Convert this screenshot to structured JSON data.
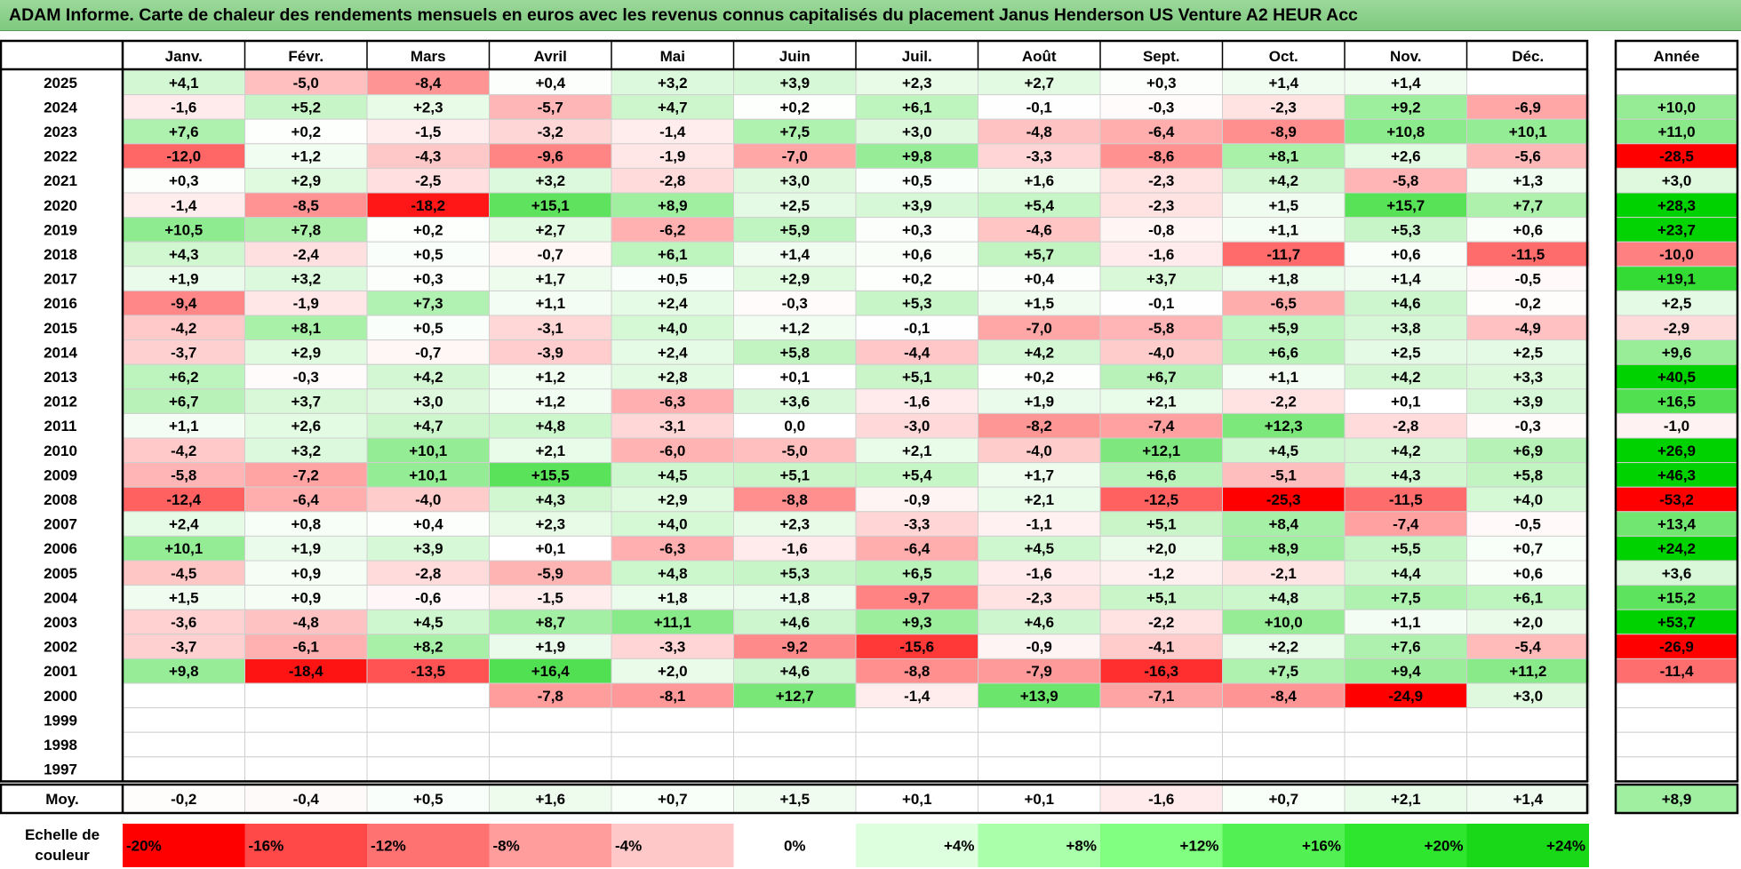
{
  "title": "ADAM Informe. Carte de chaleur des rendements mensuels en euros avec les revenus connus capitalisés du placement Janus Henderson US Venture A2 HEUR Acc",
  "chart_data": {
    "type": "heatmap",
    "months": [
      "Janv.",
      "Févr.",
      "Mars",
      "Avril",
      "Mai",
      "Juin",
      "Juil.",
      "Août",
      "Sept.",
      "Oct.",
      "Nov.",
      "Déc."
    ],
    "year_header": "Année",
    "rows": [
      {
        "year": "2025",
        "values": [
          "+4,1",
          "-5,0",
          "-8,4",
          "+0,4",
          "+3,2",
          "+3,9",
          "+2,3",
          "+2,7",
          "+0,3",
          "+1,4",
          "+1,4",
          ""
        ],
        "annual": ""
      },
      {
        "year": "2024",
        "values": [
          "-1,6",
          "+5,2",
          "+2,3",
          "-5,7",
          "+4,7",
          "+0,2",
          "+6,1",
          "-0,1",
          "-0,3",
          "-2,3",
          "+9,2",
          "-6,9"
        ],
        "annual": "+10,0"
      },
      {
        "year": "2023",
        "values": [
          "+7,6",
          "+0,2",
          "-1,5",
          "-3,2",
          "-1,4",
          "+7,5",
          "+3,0",
          "-4,8",
          "-6,4",
          "-8,9",
          "+10,8",
          "+10,1"
        ],
        "annual": "+11,0"
      },
      {
        "year": "2022",
        "values": [
          "-12,0",
          "+1,2",
          "-4,3",
          "-9,6",
          "-1,9",
          "-7,0",
          "+9,8",
          "-3,3",
          "-8,6",
          "+8,1",
          "+2,6",
          "-5,6"
        ],
        "annual": "-28,5"
      },
      {
        "year": "2021",
        "values": [
          "+0,3",
          "+2,9",
          "-2,5",
          "+3,2",
          "-2,8",
          "+3,0",
          "+0,5",
          "+1,6",
          "-2,3",
          "+4,2",
          "-5,8",
          "+1,3"
        ],
        "annual": "+3,0"
      },
      {
        "year": "2020",
        "values": [
          "-1,4",
          "-8,5",
          "-18,2",
          "+15,1",
          "+8,9",
          "+2,5",
          "+3,9",
          "+5,4",
          "-2,3",
          "+1,5",
          "+15,7",
          "+7,7"
        ],
        "annual": "+28,3"
      },
      {
        "year": "2019",
        "values": [
          "+10,5",
          "+7,8",
          "+0,2",
          "+2,7",
          "-6,2",
          "+5,9",
          "+0,3",
          "-4,6",
          "-0,8",
          "+1,1",
          "+5,3",
          "+0,6"
        ],
        "annual": "+23,7"
      },
      {
        "year": "2018",
        "values": [
          "+4,3",
          "-2,4",
          "+0,5",
          "-0,7",
          "+6,1",
          "+1,4",
          "+0,6",
          "+5,7",
          "-1,6",
          "-11,7",
          "+0,6",
          "-11,5"
        ],
        "annual": "-10,0"
      },
      {
        "year": "2017",
        "values": [
          "+1,9",
          "+3,2",
          "+0,3",
          "+1,7",
          "+0,5",
          "+2,9",
          "+0,2",
          "+0,4",
          "+3,7",
          "+1,8",
          "+1,4",
          "-0,5"
        ],
        "annual": "+19,1"
      },
      {
        "year": "2016",
        "values": [
          "-9,4",
          "-1,9",
          "+7,3",
          "+1,1",
          "+2,4",
          "-0,3",
          "+5,3",
          "+1,5",
          "-0,1",
          "-6,5",
          "+4,6",
          "-0,2"
        ],
        "annual": "+2,5"
      },
      {
        "year": "2015",
        "values": [
          "-4,2",
          "+8,1",
          "+0,5",
          "-3,1",
          "+4,0",
          "+1,2",
          "-0,1",
          "-7,0",
          "-5,8",
          "+5,9",
          "+3,8",
          "-4,9"
        ],
        "annual": "-2,9"
      },
      {
        "year": "2014",
        "values": [
          "-3,7",
          "+2,9",
          "-0,7",
          "-3,9",
          "+2,4",
          "+5,8",
          "-4,4",
          "+4,2",
          "-4,0",
          "+6,6",
          "+2,5",
          "+2,5"
        ],
        "annual": "+9,6"
      },
      {
        "year": "2013",
        "values": [
          "+6,2",
          "-0,3",
          "+4,2",
          "+1,2",
          "+2,8",
          "+0,1",
          "+5,1",
          "+0,2",
          "+6,7",
          "+1,1",
          "+4,2",
          "+3,3"
        ],
        "annual": "+40,5"
      },
      {
        "year": "2012",
        "values": [
          "+6,7",
          "+3,7",
          "+3,0",
          "+1,2",
          "-6,3",
          "+3,6",
          "-1,6",
          "+1,9",
          "+2,1",
          "-2,2",
          "+0,1",
          "+3,9"
        ],
        "annual": "+16,5"
      },
      {
        "year": "2011",
        "values": [
          "+1,1",
          "+2,6",
          "+4,7",
          "+4,8",
          "-3,1",
          "0,0",
          "-3,0",
          "-8,2",
          "-7,4",
          "+12,3",
          "-2,8",
          "-0,3"
        ],
        "annual": "-1,0"
      },
      {
        "year": "2010",
        "values": [
          "-4,2",
          "+3,2",
          "+10,1",
          "+2,1",
          "-6,0",
          "-5,0",
          "+2,1",
          "-4,0",
          "+12,1",
          "+4,5",
          "+4,2",
          "+6,9"
        ],
        "annual": "+26,9"
      },
      {
        "year": "2009",
        "values": [
          "-5,8",
          "-7,2",
          "+10,1",
          "+15,5",
          "+4,5",
          "+5,1",
          "+5,4",
          "+1,7",
          "+6,6",
          "-5,1",
          "+4,3",
          "+5,8"
        ],
        "annual": "+46,3"
      },
      {
        "year": "2008",
        "values": [
          "-12,4",
          "-6,4",
          "-4,0",
          "+4,3",
          "+2,9",
          "-8,8",
          "-0,9",
          "+2,1",
          "-12,5",
          "-25,3",
          "-11,5",
          "+4,0"
        ],
        "annual": "-53,2"
      },
      {
        "year": "2007",
        "values": [
          "+2,4",
          "+0,8",
          "+0,4",
          "+2,3",
          "+4,0",
          "+2,3",
          "-3,3",
          "-1,1",
          "+5,1",
          "+8,4",
          "-7,4",
          "-0,5"
        ],
        "annual": "+13,4"
      },
      {
        "year": "2006",
        "values": [
          "+10,1",
          "+1,9",
          "+3,9",
          "+0,1",
          "-6,3",
          "-1,6",
          "-6,4",
          "+4,5",
          "+2,0",
          "+8,9",
          "+5,5",
          "+0,7"
        ],
        "annual": "+24,2"
      },
      {
        "year": "2005",
        "values": [
          "-4,5",
          "+0,9",
          "-2,8",
          "-5,9",
          "+4,8",
          "+5,3",
          "+6,5",
          "-1,6",
          "-1,2",
          "-2,1",
          "+4,4",
          "+0,6"
        ],
        "annual": "+3,6"
      },
      {
        "year": "2004",
        "values": [
          "+1,5",
          "+0,9",
          "-0,6",
          "-1,5",
          "+1,8",
          "+1,8",
          "-9,7",
          "-2,3",
          "+5,1",
          "+4,8",
          "+7,5",
          "+6,1"
        ],
        "annual": "+15,2"
      },
      {
        "year": "2003",
        "values": [
          "-3,6",
          "-4,8",
          "+4,5",
          "+8,7",
          "+11,1",
          "+4,6",
          "+9,3",
          "+4,6",
          "-2,2",
          "+10,0",
          "+1,1",
          "+2,0"
        ],
        "annual": "+53,7"
      },
      {
        "year": "2002",
        "values": [
          "-3,7",
          "-6,1",
          "+8,2",
          "+1,9",
          "-3,3",
          "-9,2",
          "-15,6",
          "-0,9",
          "-4,1",
          "+2,2",
          "+7,6",
          "-5,4"
        ],
        "annual": "-26,9"
      },
      {
        "year": "2001",
        "values": [
          "+9,8",
          "-18,4",
          "-13,5",
          "+16,4",
          "+2,0",
          "+4,6",
          "-8,8",
          "-7,9",
          "-16,3",
          "+7,5",
          "+9,4",
          "+11,2"
        ],
        "annual": "-11,4"
      },
      {
        "year": "2000",
        "values": [
          "",
          "",
          "",
          "-7,8",
          "-8,1",
          "+12,7",
          "-1,4",
          "+13,9",
          "-7,1",
          "-8,4",
          "-24,9",
          "+3,0"
        ],
        "annual": ""
      },
      {
        "year": "1999",
        "values": [
          "",
          "",
          "",
          "",
          "",
          "",
          "",
          "",
          "",
          "",
          "",
          ""
        ],
        "annual": ""
      },
      {
        "year": "1998",
        "values": [
          "",
          "",
          "",
          "",
          "",
          "",
          "",
          "",
          "",
          "",
          "",
          ""
        ],
        "annual": ""
      },
      {
        "year": "1997",
        "values": [
          "",
          "",
          "",
          "",
          "",
          "",
          "",
          "",
          "",
          "",
          "",
          ""
        ],
        "annual": ""
      }
    ],
    "average": {
      "label": "Moy.",
      "values": [
        "-0,2",
        "-0,4",
        "+0,5",
        "+1,6",
        "+0,7",
        "+1,5",
        "+0,1",
        "+0,1",
        "-1,6",
        "+0,7",
        "+2,1",
        "+1,4"
      ],
      "annual": "+8,9"
    },
    "scale": {
      "label_lines": [
        "Echelle de",
        "couleur"
      ],
      "steps": [
        {
          "label": "-20%",
          "color": "#ff0000"
        },
        {
          "label": "-16%",
          "color": "#ff4848"
        },
        {
          "label": "-12%",
          "color": "#ff7272"
        },
        {
          "label": "-8%",
          "color": "#ff9c9c"
        },
        {
          "label": "-4%",
          "color": "#ffc8c8"
        },
        {
          "label": "0%",
          "color": "#ffffff"
        },
        {
          "label": "+4%",
          "color": "#ddffdd"
        },
        {
          "label": "+8%",
          "color": "#aaffaa"
        },
        {
          "label": "+12%",
          "color": "#80ff80"
        },
        {
          "label": "+16%",
          "color": "#52f052"
        },
        {
          "label": "+20%",
          "color": "#2ee62e"
        },
        {
          "label": "+24%",
          "color": "#18d818"
        }
      ]
    }
  }
}
